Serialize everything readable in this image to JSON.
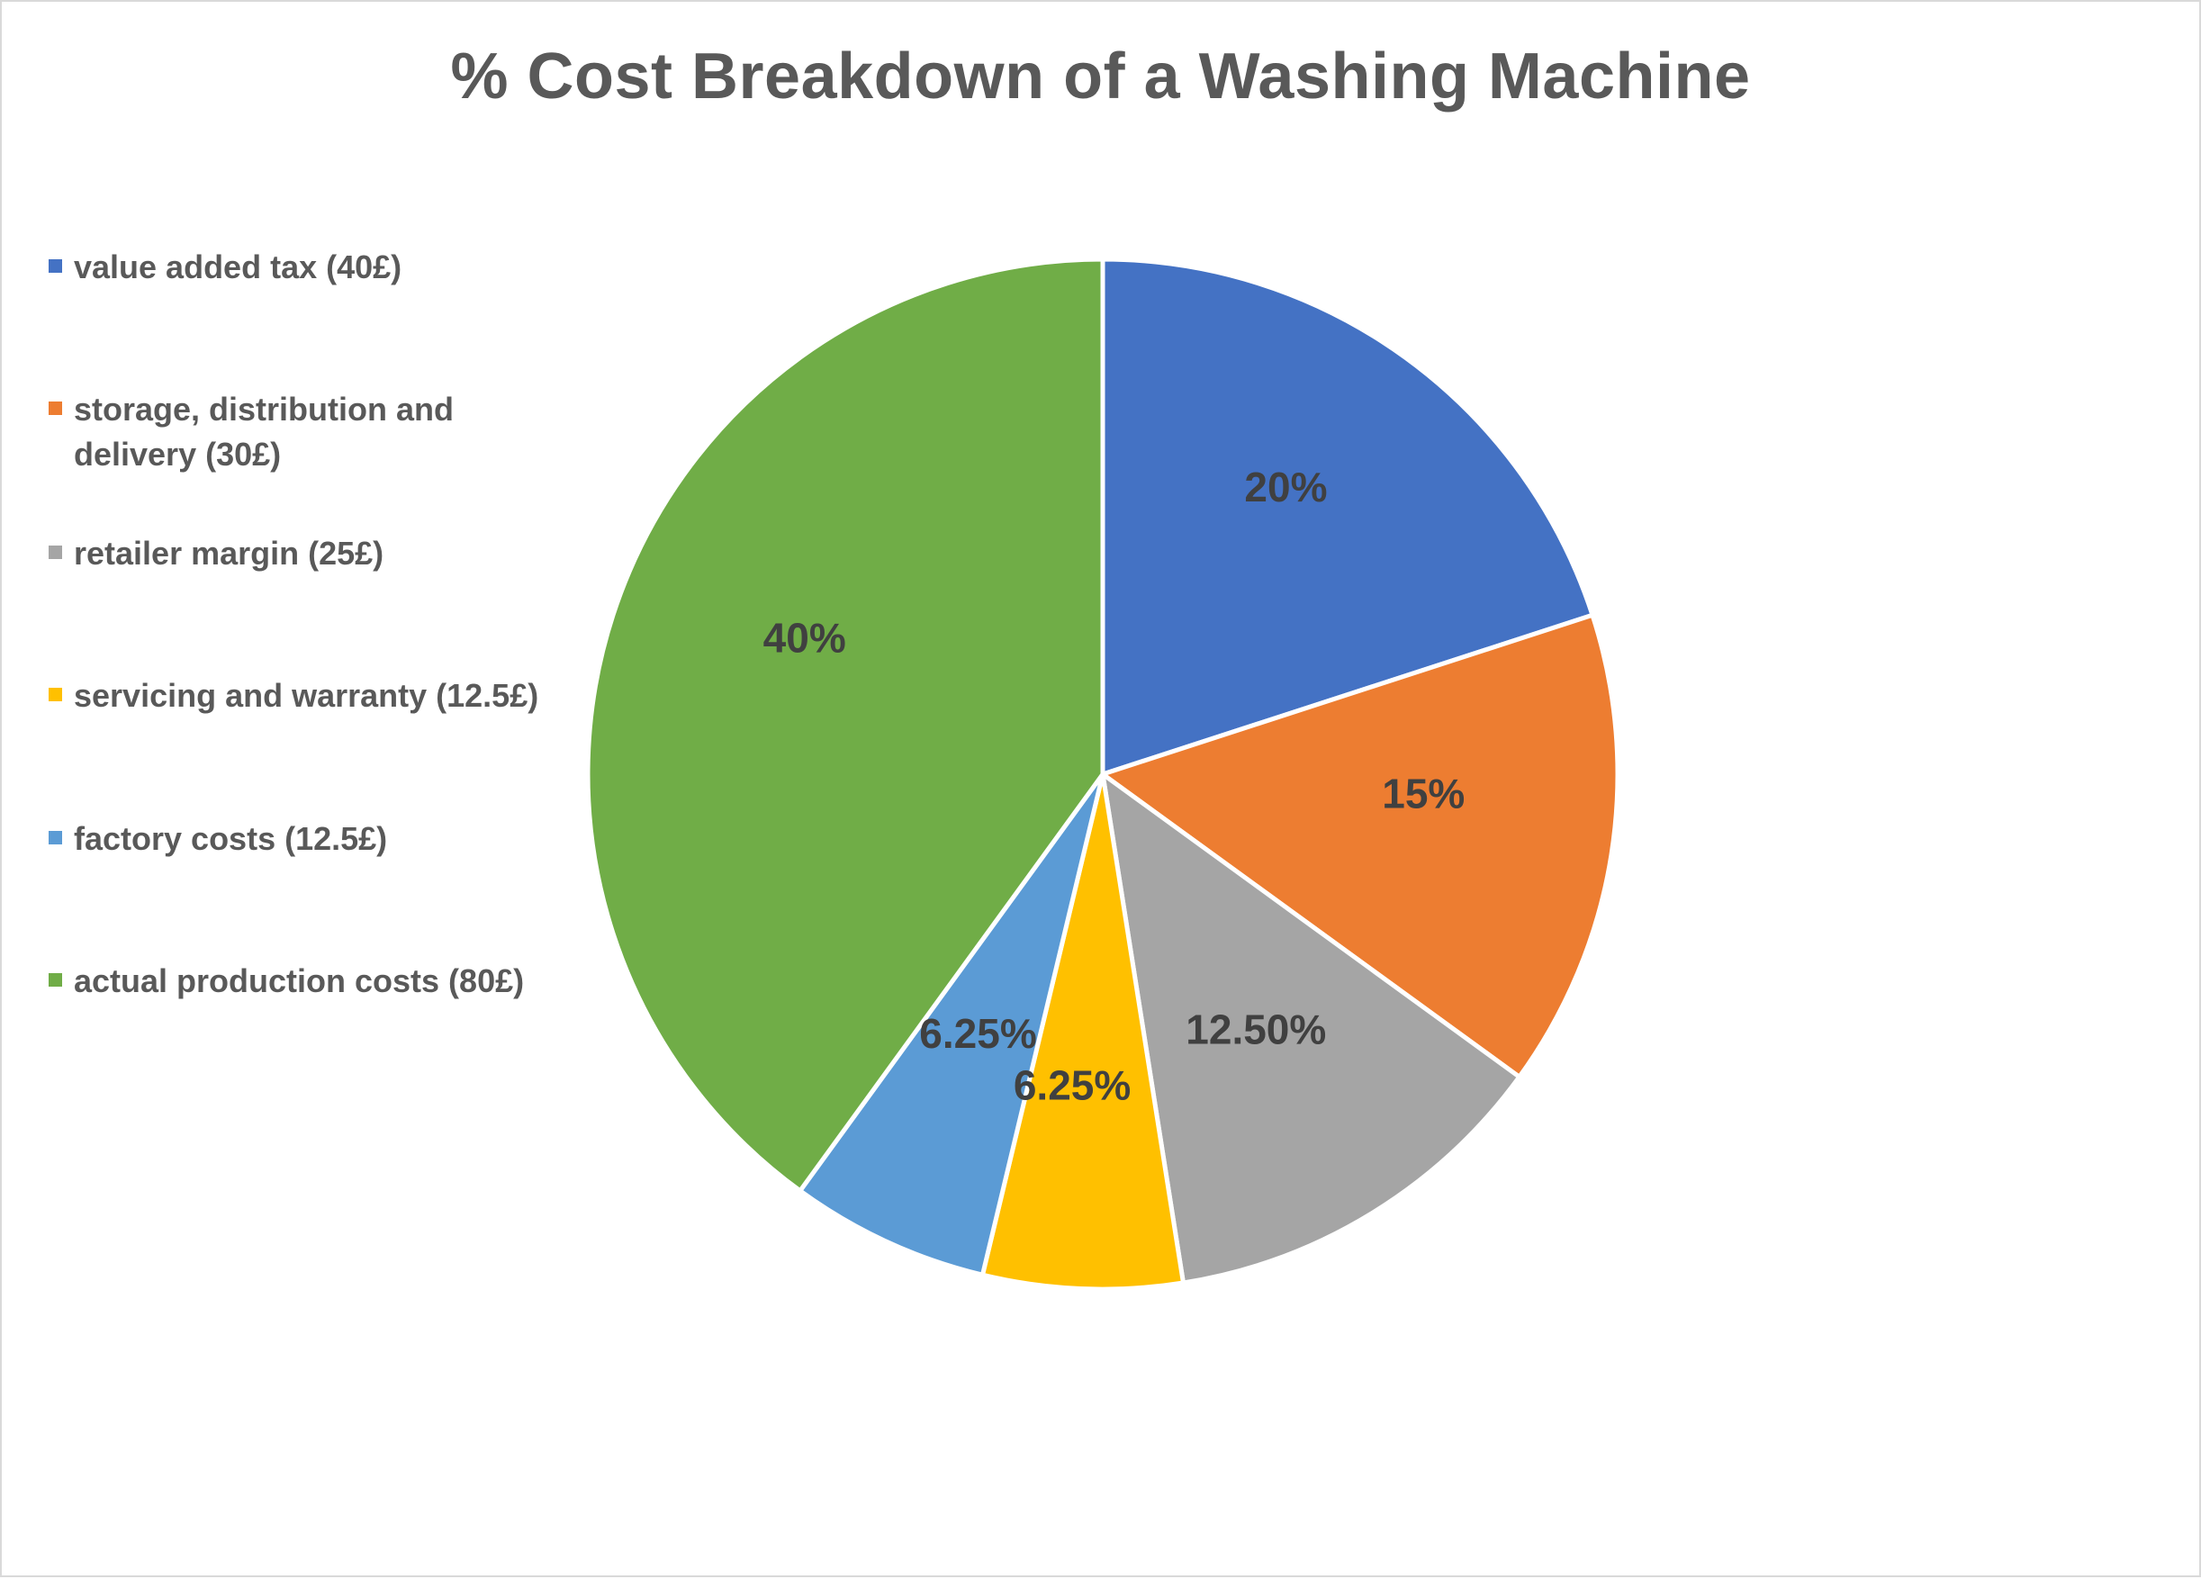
{
  "chart_data": {
    "type": "pie",
    "title": "% Cost Breakdown of a Washing Machine",
    "legend_position": "left",
    "slices": [
      {
        "name": "value added tax (40£)",
        "value": 20,
        "label": "20%",
        "color": "#4472C4"
      },
      {
        "name": "storage, distribution and delivery (30£)",
        "value": 15,
        "label": "15%",
        "color": "#ED7D31"
      },
      {
        "name": "retailer margin (25£)",
        "value": 12.5,
        "label": "12.50%",
        "color": "#A5A5A5"
      },
      {
        "name": "servicing and warranty (12.5£)",
        "value": 6.25,
        "label": "6.25%",
        "color": "#FFC000"
      },
      {
        "name": "factory costs (12.5£)",
        "value": 6.25,
        "label": "6.25%",
        "color": "#5B9BD5"
      },
      {
        "name": "actual production costs (80£)",
        "value": 40,
        "label": "40%",
        "color": "#70AD47"
      }
    ]
  }
}
